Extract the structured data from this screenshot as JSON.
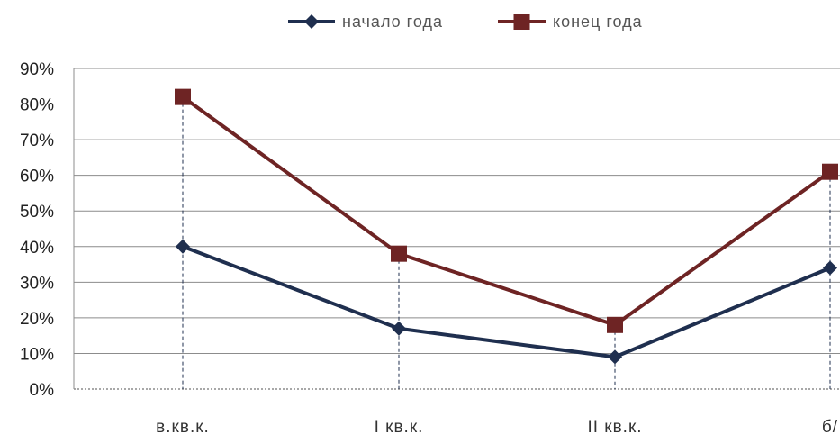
{
  "chart_data": {
    "type": "line",
    "title": "",
    "xlabel": "",
    "ylabel": "",
    "ylim": [
      0,
      90
    ],
    "yticks": [
      "0%",
      "10%",
      "20%",
      "30%",
      "40%",
      "50%",
      "60%",
      "70%",
      "80%",
      "90%"
    ],
    "y_unit": "%",
    "grid": true,
    "legend_position": "top",
    "categories": [
      "в.кв.к.",
      "I кв.к.",
      "II кв.к.",
      "б/"
    ],
    "series": [
      {
        "name": "начало года",
        "values": [
          40,
          17,
          9,
          34
        ],
        "color": "#1f2f4f",
        "marker": "diamond"
      },
      {
        "name": "конец года",
        "values": [
          82,
          38,
          18,
          61
        ],
        "color": "#6e2424",
        "marker": "square"
      }
    ]
  }
}
